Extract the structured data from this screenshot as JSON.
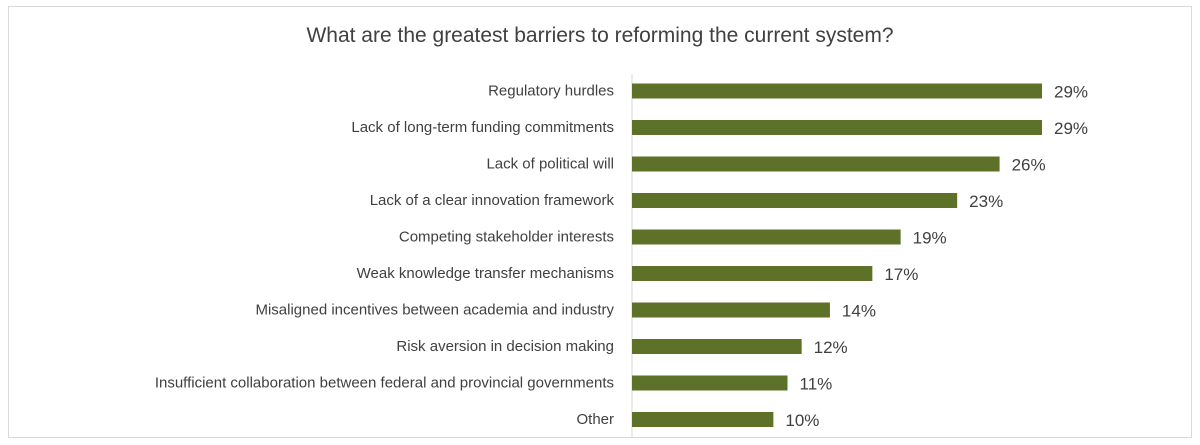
{
  "chart_data": {
    "type": "bar",
    "orientation": "horizontal",
    "title": "What are the greatest barriers to reforming the current system?",
    "categories": [
      "Regulatory hurdles",
      "Lack of long-term funding commitments",
      "Lack of political will",
      "Lack of a clear innovation framework",
      "Competing stakeholder interests",
      "Weak knowledge transfer mechanisms",
      "Misaligned incentives between academia and industry",
      "Risk aversion in decision making",
      "Insufficient collaboration between federal and provincial governments",
      "Other"
    ],
    "values": [
      29,
      29,
      26,
      23,
      19,
      17,
      14,
      12,
      11,
      10
    ],
    "value_labels": [
      "29%",
      "29%",
      "26%",
      "23%",
      "19%",
      "17%",
      "14%",
      "12%",
      "11%",
      "10%"
    ],
    "unit": "%",
    "bar_color": "#5e7129",
    "grid": false,
    "legend": "none"
  }
}
